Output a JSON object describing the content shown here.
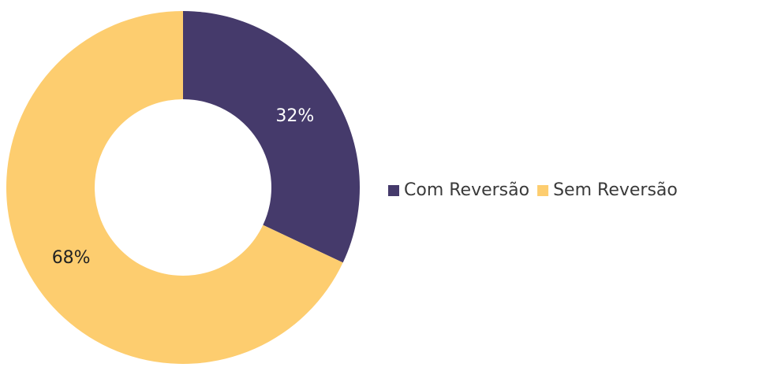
{
  "chart_data": {
    "type": "pie",
    "donut": true,
    "categories": [
      "Com Reversão",
      "Sem Reversão"
    ],
    "values": [
      32,
      68
    ],
    "value_labels": [
      "32%",
      "68%"
    ],
    "colors": [
      "#453a6b",
      "#fdcd6f"
    ],
    "legend": "right"
  }
}
